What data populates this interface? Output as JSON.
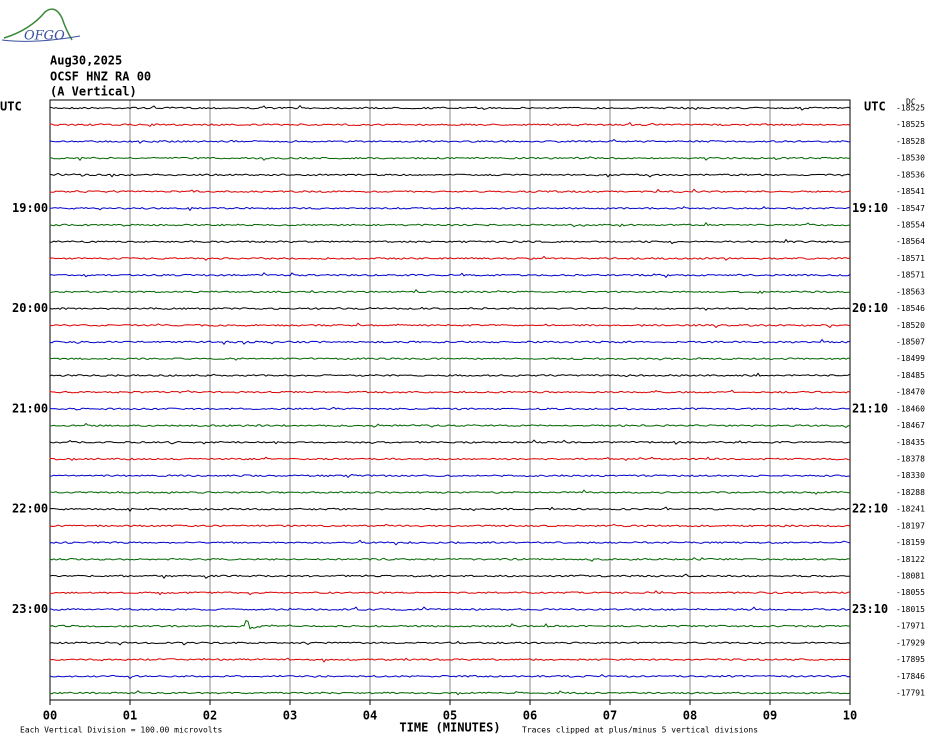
{
  "header": {
    "logo": "OFGO",
    "date": "Aug30,2025",
    "station": "OCSF HNZ RA 00",
    "component": "(A Vertical)"
  },
  "left_axis": {
    "unit": "UTC",
    "hours": [
      "19:00",
      "20:00",
      "21:00",
      "22:00",
      "23:00"
    ]
  },
  "right_axis": {
    "unit": "UTC",
    "times": [
      "19:10",
      "20:10",
      "21:10",
      "22:10",
      "23:10"
    ],
    "dc": "DC",
    "offsets": [
      "-18525",
      "-18525",
      "-18528",
      "-18530",
      "-18536",
      "-18541",
      "-18547",
      "-18554",
      "-18564",
      "-18571",
      "-18571",
      "-18563",
      "-18546",
      "-18520",
      "-18507",
      "-18499",
      "-18485",
      "-18470",
      "-18460",
      "-18467",
      "-18435",
      "-18378",
      "-18330",
      "-18288",
      "-18241",
      "-18197",
      "-18159",
      "-18122",
      "-18081",
      "-18055",
      "-18015",
      "-17971",
      "-17929",
      "-17895",
      "-17846",
      "-17791"
    ]
  },
  "x_axis": {
    "ticks": [
      "00",
      "01",
      "02",
      "03",
      "04",
      "05",
      "06",
      "07",
      "08",
      "09",
      "10"
    ],
    "label": "TIME (MINUTES)"
  },
  "footer": {
    "scale": "Each Vertical Division =  100.00 microvolts",
    "clip": "Traces clipped at plus/minus 5 vertical divisions"
  }
}
